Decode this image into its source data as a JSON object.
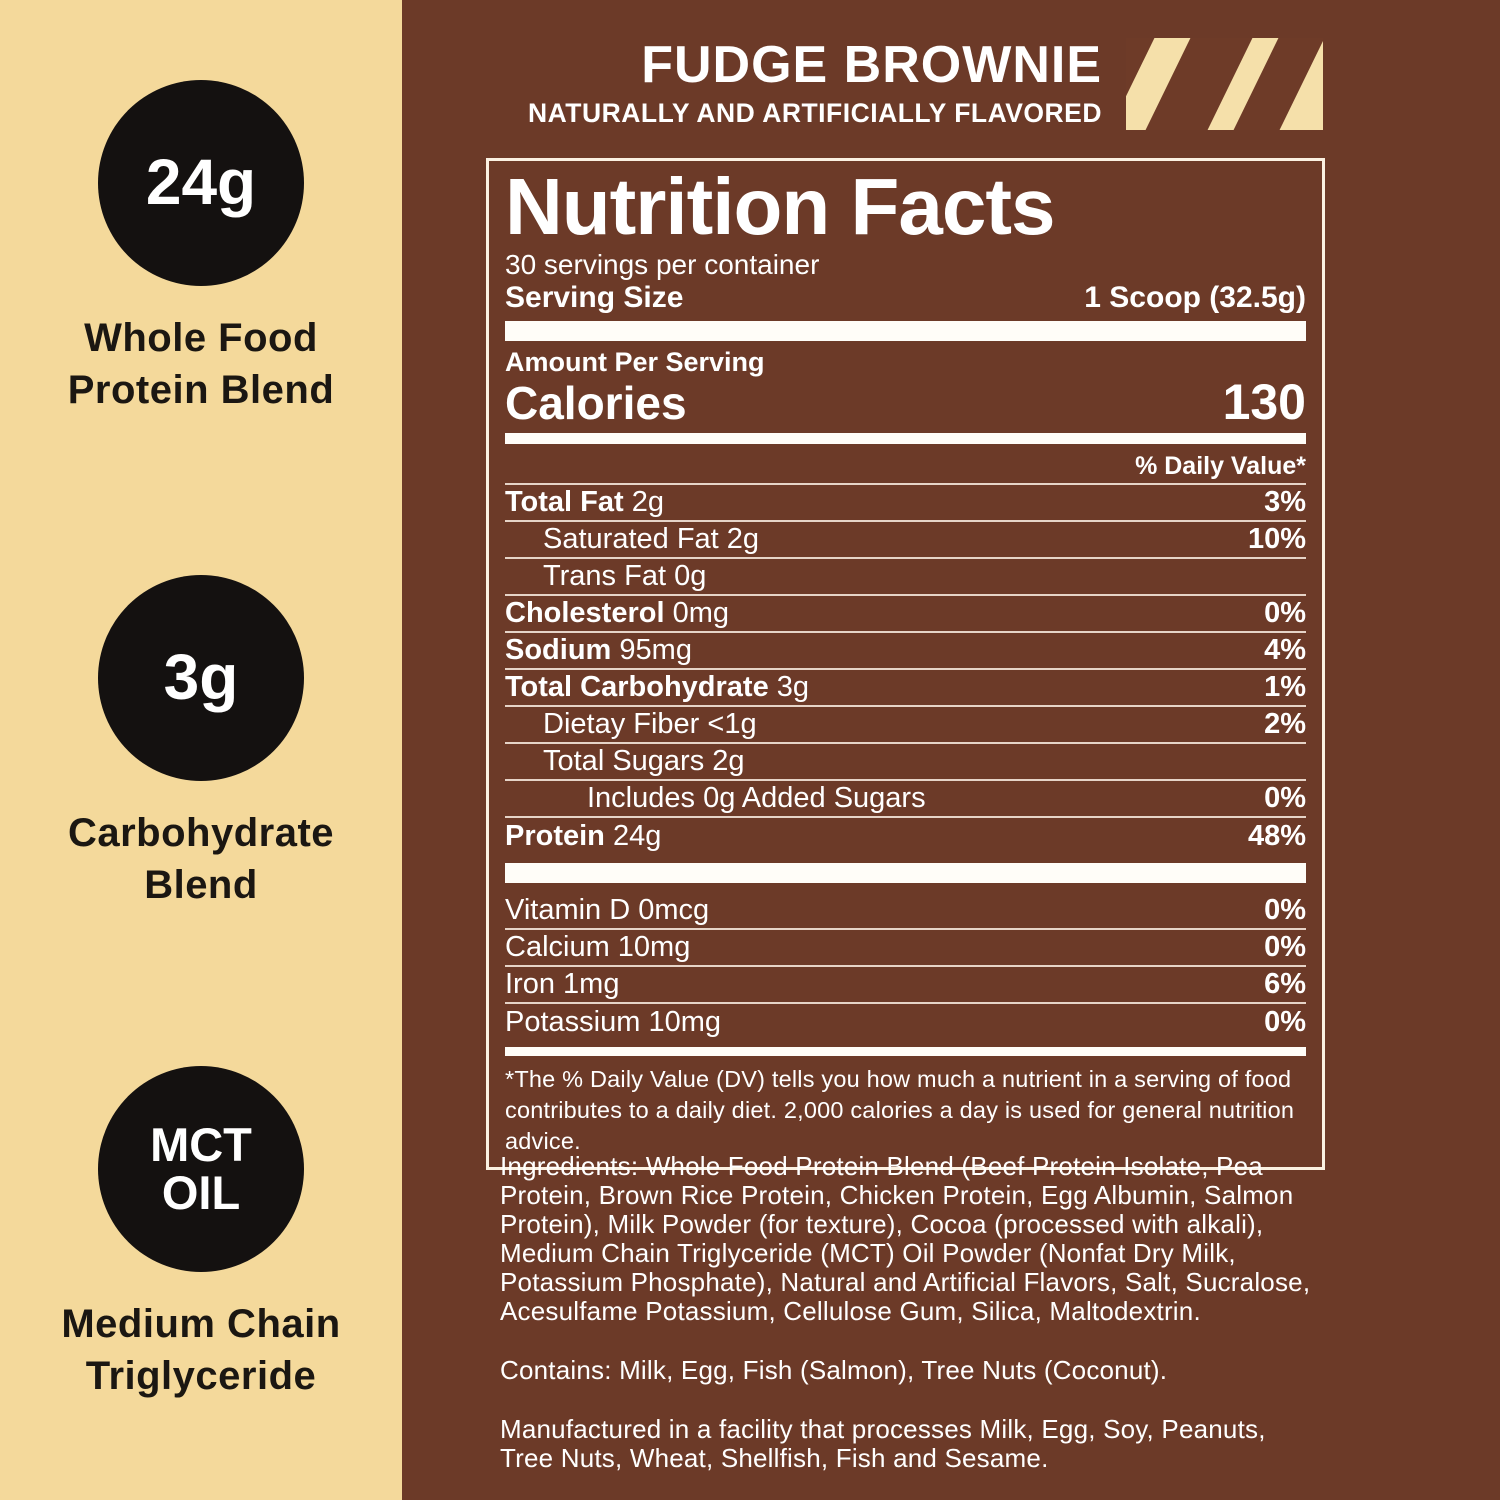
{
  "colors": {
    "background_brown": "#6C3A28",
    "sidebar_cream": "#F4D99B",
    "badge_black": "#141110",
    "text_white": "#FFFFFF",
    "icon_cream": "#F5E0AA"
  },
  "sidebar": {
    "features": [
      {
        "badge": "24g",
        "label": "Whole Food\nProtein Blend"
      },
      {
        "badge": "3g",
        "label": "Carbohydrate\nBlend"
      },
      {
        "badge": "MCT\nOIL",
        "label": "Medium Chain\nTriglyceride"
      }
    ]
  },
  "header": {
    "flavor": "FUDGE BROWNIE",
    "subtitle": "NATURALLY AND ARTIFICIALLY FLAVORED",
    "icon": "brownie-icon"
  },
  "panel": {
    "title": "Nutrition Facts",
    "servings_per_container": "30 servings per container",
    "serving_size_label": "Serving Size",
    "serving_size_value": "1 Scoop (32.5g)",
    "amount_per_serving": "Amount Per Serving",
    "calories_label": "Calories",
    "calories_value": "130",
    "daily_value_header": "% Daily Value*",
    "rows": [
      {
        "bold": "Total Fat",
        "text": " 2g",
        "value": "3%",
        "indent": 0
      },
      {
        "bold": "",
        "text": "Saturated Fat 2g",
        "value": "10%",
        "indent": 1
      },
      {
        "bold": "",
        "text": "Trans Fat 0g",
        "value": "",
        "indent": 1
      },
      {
        "bold": "Cholesterol",
        "text": " 0mg",
        "value": "0%",
        "indent": 0
      },
      {
        "bold": "Sodium",
        "text": " 95mg",
        "value": "4%",
        "indent": 0
      },
      {
        "bold": "Total Carbohydrate",
        "text": " 3g",
        "value": "1%",
        "indent": 0
      },
      {
        "bold": "",
        "text": "Dietay Fiber <1g",
        "value": "2%",
        "indent": 1
      },
      {
        "bold": "",
        "text": "Total Sugars 2g",
        "value": "",
        "indent": 1
      },
      {
        "bold": "",
        "text": "Includes 0g Added Sugars",
        "value": "0%",
        "indent": 2
      },
      {
        "bold": "Protein",
        "text": " 24g",
        "value": "48%",
        "indent": 0
      }
    ],
    "vitamin_rows": [
      {
        "bold": "",
        "text": "Vitamin D 0mcg",
        "value": "0%",
        "indent": 0
      },
      {
        "bold": "",
        "text": "Calcium 10mg",
        "value": "0%",
        "indent": 0
      },
      {
        "bold": "",
        "text": "Iron 1mg",
        "value": "6%",
        "indent": 0
      },
      {
        "bold": "",
        "text": "Potassium 10mg",
        "value": "0%",
        "indent": 0
      }
    ],
    "footnote": "*The % Daily Value (DV) tells you how much a nutrient in a serving of food contributes to a daily diet. 2,000 calories a day is used for general nutrition advice."
  },
  "ingredients": {
    "ingredients_text": "Ingredients: Whole Food Protein Blend (Beef Protein Isolate, Pea Protein, Brown Rice Protein, Chicken Protein, Egg Albumin, Salmon Protein), Milk Powder (for texture), Cocoa (processed with alkali), Medium Chain Triglyceride (MCT) Oil Powder (Nonfat Dry Milk, Potassium Phosphate), Natural and Artificial Flavors, Salt, Sucralose, Acesulfame Potassium, Cellulose Gum, Silica, Maltodextrin.",
    "contains_text": "Contains: Milk, Egg, Fish (Salmon), Tree Nuts (Coconut).",
    "manufactured_text": "Manufactured in a facility that processes Milk, Egg, Soy, Peanuts, Tree Nuts, Wheat, Shellfish, Fish and Sesame."
  }
}
